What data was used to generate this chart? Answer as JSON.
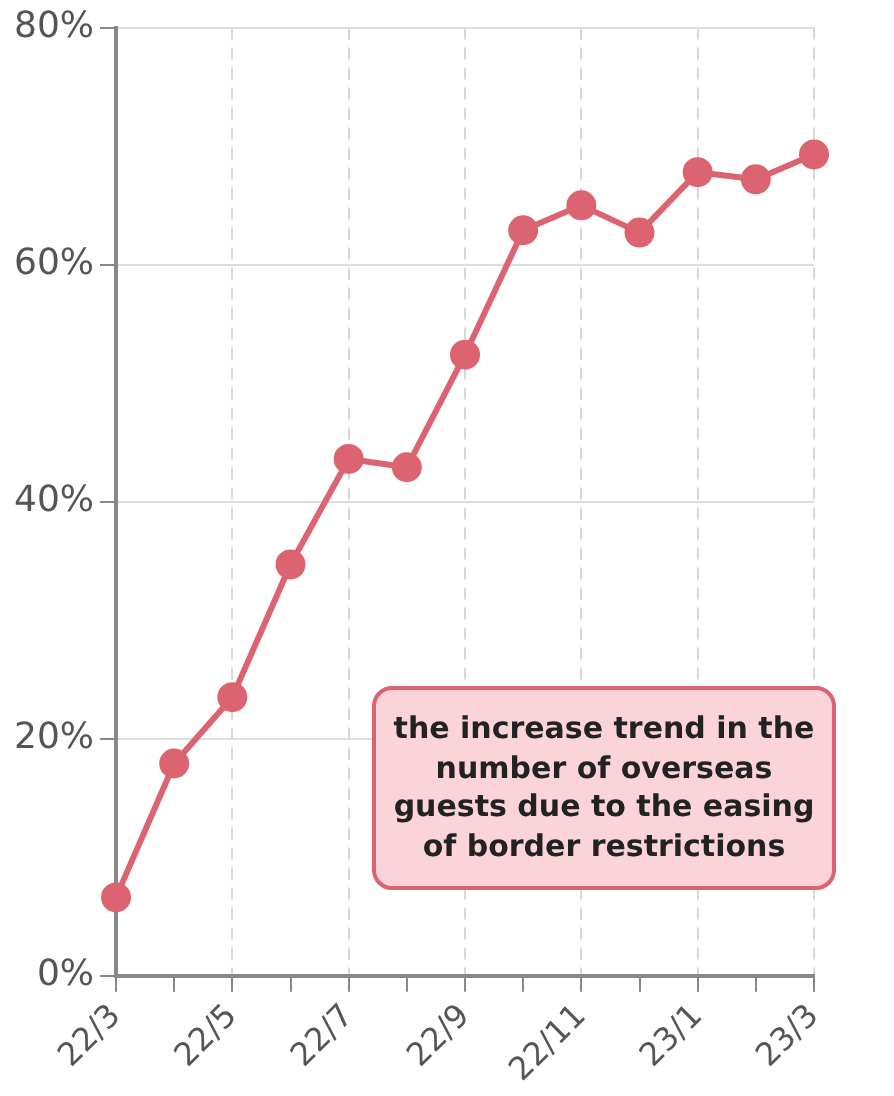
{
  "chart_data": {
    "type": "line",
    "categories": [
      "22/3",
      null,
      "22/5",
      null,
      "22/7",
      null,
      "22/9",
      null,
      "22/11",
      null,
      "23/1",
      null,
      "23/3"
    ],
    "series": [
      {
        "color": "#dc6470",
        "values": [
          6.6,
          17.9,
          23.5,
          34.7,
          43.6,
          42.9,
          52.4,
          62.9,
          65.0,
          62.7,
          67.8,
          67.2,
          69.3
        ]
      }
    ],
    "ylim": [
      0,
      80
    ],
    "yticks": [
      {
        "value": 0,
        "label": "0%"
      },
      {
        "value": 20,
        "label": "20%"
      },
      {
        "value": 40,
        "label": "40%"
      },
      {
        "value": 60,
        "label": "60%"
      },
      {
        "value": 80,
        "label": "80%"
      }
    ],
    "grid": true,
    "marker": "circle",
    "line_style": "solid",
    "annotations": [
      "the increase trend in the number of overseas guests due to the easing of border restrictions"
    ]
  }
}
